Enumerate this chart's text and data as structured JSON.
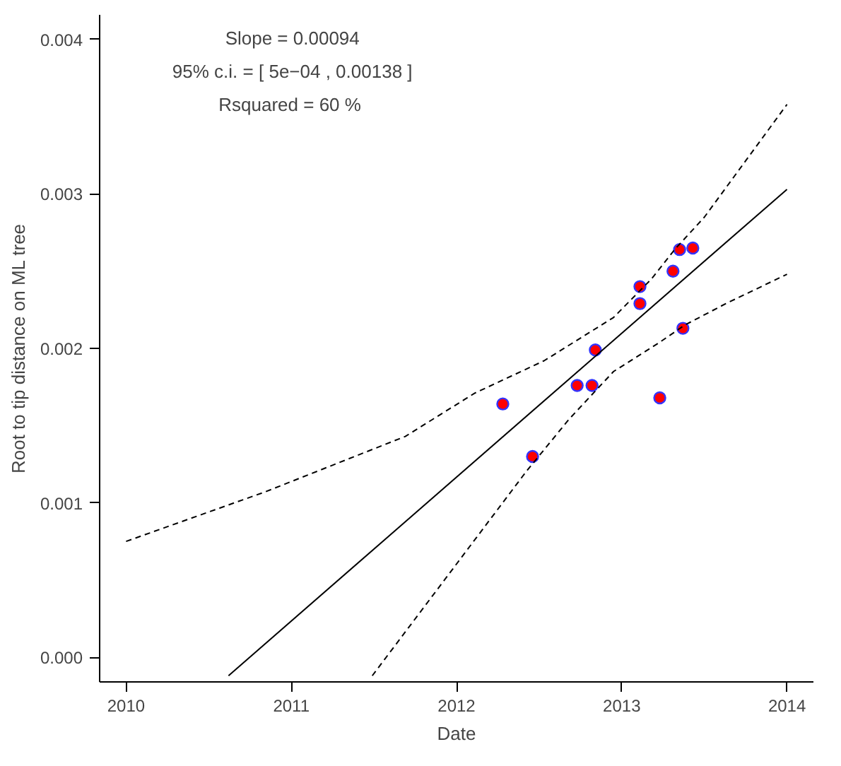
{
  "chart_data": {
    "type": "scatter",
    "xlabel": "Date",
    "ylabel": "Root to tip distance on ML tree",
    "annotations": [
      "Slope = 0.00094",
      "95% c.i. = [ 5e−04 , 0.00138 ]",
      "Rsquared =  60 %"
    ],
    "xlim": [
      2009.84,
      2014.16
    ],
    "ylim": [
      -0.00016,
      0.00416
    ],
    "xticks": [
      2010,
      2011,
      2012,
      2013,
      2014
    ],
    "yticks": [
      {
        "value": 0,
        "label": "0.000"
      },
      {
        "value": 0.001,
        "label": "0.001"
      },
      {
        "value": 0.002,
        "label": "0.002"
      },
      {
        "value": 0.003,
        "label": "0.003"
      },
      {
        "value": 0.004,
        "label": "0.004"
      }
    ],
    "grid": false,
    "series": [
      {
        "color": "#ff0000",
        "marker": "circle",
        "x": [
          2012.28,
          2012.46,
          2012.73,
          2012.82,
          2012.84,
          2013.11,
          2013.11,
          2013.23,
          2013.31,
          2013.35,
          2013.37,
          2013.43
        ],
        "values": [
          0.00164,
          0.0013,
          0.00176,
          0.00176,
          0.00199,
          0.0024,
          0.00229,
          0.00168,
          0.0025,
          0.00264,
          0.00213,
          0.00265
        ]
      },
      {
        "type": "line",
        "color": "#000000",
        "line_style": "solid",
        "x": [
          2010.62,
          2014.0
        ],
        "values": [
          -0.00012,
          0.00303
        ]
      },
      {
        "type": "line",
        "color": "#000000",
        "line_style": "dashed",
        "x": [
          2010.0,
          2010.84,
          2011.69,
          2012.11,
          2012.53,
          2012.95,
          2013.18,
          2013.32,
          2013.5,
          2014.0
        ],
        "values": [
          0.00075,
          0.00107,
          0.00143,
          0.00171,
          0.00192,
          0.0022,
          0.00245,
          0.00264,
          0.00285,
          0.00358
        ]
      },
      {
        "type": "line",
        "color": "#000000",
        "line_style": "dashed",
        "x": [
          2011.49,
          2012.42,
          2012.68,
          2012.95,
          2013.23,
          2013.38,
          2013.63,
          2014.0
        ],
        "values": [
          -0.00012,
          0.0012,
          0.00154,
          0.00185,
          0.00204,
          0.00215,
          0.00229,
          0.00248
        ]
      }
    ]
  }
}
